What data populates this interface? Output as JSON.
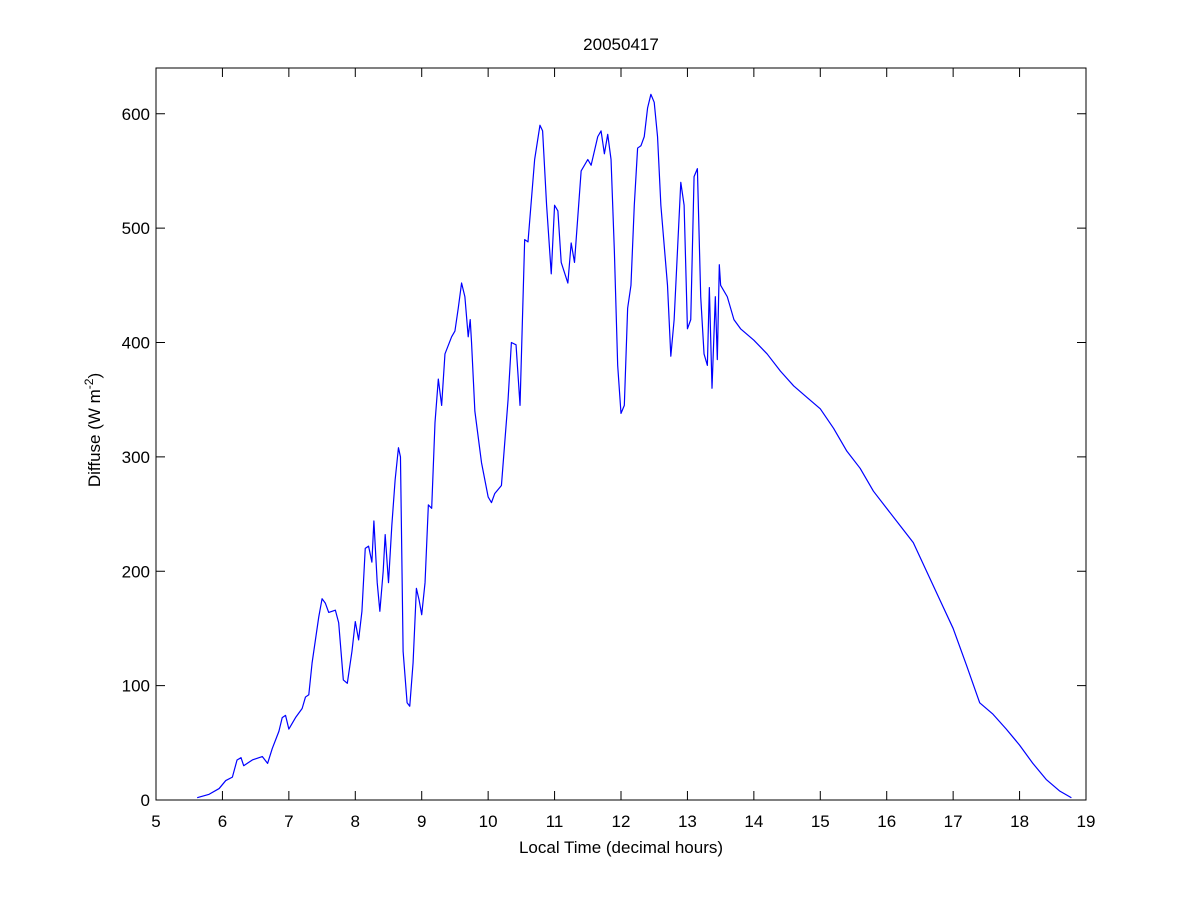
{
  "chart_data": {
    "type": "line",
    "title": "20050417",
    "xlabel": "Local Time (decimal hours)",
    "ylabel": {
      "text": "Diffuse (W m",
      "superscript": "-2",
      "suffix": ")"
    },
    "color": "#0000ff",
    "xlim": [
      5,
      19
    ],
    "xticks": [
      5,
      6,
      7,
      8,
      9,
      10,
      11,
      12,
      13,
      14,
      15,
      16,
      17,
      18,
      19
    ],
    "ylim": [
      0,
      640
    ],
    "yticks": [
      0,
      100,
      200,
      300,
      400,
      500,
      600
    ],
    "x": [
      5.62,
      5.8,
      5.95,
      6.05,
      6.15,
      6.22,
      6.28,
      6.32,
      6.45,
      6.6,
      6.68,
      6.75,
      6.85,
      6.9,
      6.95,
      7.0,
      7.1,
      7.2,
      7.25,
      7.3,
      7.35,
      7.45,
      7.5,
      7.55,
      7.6,
      7.7,
      7.75,
      7.82,
      7.88,
      7.95,
      8.0,
      8.05,
      8.1,
      8.15,
      8.2,
      8.25,
      8.28,
      8.33,
      8.37,
      8.42,
      8.45,
      8.5,
      8.55,
      8.6,
      8.65,
      8.68,
      8.72,
      8.78,
      8.82,
      8.87,
      8.92,
      8.96,
      9.0,
      9.05,
      9.1,
      9.15,
      9.2,
      9.25,
      9.3,
      9.35,
      9.45,
      9.5,
      9.55,
      9.6,
      9.65,
      9.7,
      9.73,
      9.75,
      9.8,
      9.9,
      10.0,
      10.05,
      10.1,
      10.2,
      10.3,
      10.35,
      10.42,
      10.48,
      10.55,
      10.6,
      10.7,
      10.78,
      10.82,
      10.88,
      10.95,
      11.0,
      11.05,
      11.1,
      11.2,
      11.25,
      11.3,
      11.4,
      11.5,
      11.55,
      11.65,
      11.7,
      11.75,
      11.8,
      11.85,
      11.9,
      11.95,
      12.0,
      12.05,
      12.1,
      12.15,
      12.2,
      12.25,
      12.3,
      12.35,
      12.4,
      12.45,
      12.5,
      12.55,
      12.6,
      12.7,
      12.75,
      12.8,
      12.85,
      12.9,
      12.95,
      13.0,
      13.05,
      13.1,
      13.15,
      13.2,
      13.25,
      13.3,
      13.33,
      13.37,
      13.42,
      13.45,
      13.48,
      13.5,
      13.6,
      13.7,
      13.8,
      14.0,
      14.2,
      14.4,
      14.6,
      14.8,
      15.0,
      15.2,
      15.4,
      15.6,
      15.8,
      16.0,
      16.2,
      16.4,
      16.6,
      16.8,
      17.0,
      17.2,
      17.4,
      17.6,
      17.8,
      18.0,
      18.2,
      18.4,
      18.6,
      18.78
    ],
    "values": [
      2,
      5,
      10,
      17,
      20,
      35,
      37,
      30,
      35,
      38,
      32,
      45,
      60,
      72,
      74,
      62,
      72,
      80,
      90,
      92,
      120,
      160,
      176,
      172,
      164,
      166,
      155,
      105,
      102,
      130,
      156,
      140,
      165,
      220,
      222,
      208,
      244,
      190,
      165,
      200,
      232,
      190,
      240,
      280,
      308,
      300,
      130,
      85,
      82,
      120,
      185,
      175,
      162,
      190,
      258,
      255,
      330,
      368,
      345,
      390,
      405,
      410,
      430,
      452,
      440,
      405,
      420,
      400,
      340,
      295,
      265,
      260,
      268,
      275,
      350,
      400,
      398,
      345,
      490,
      488,
      560,
      590,
      585,
      520,
      460,
      520,
      515,
      470,
      452,
      487,
      470,
      550,
      560,
      555,
      580,
      585,
      565,
      582,
      560,
      480,
      380,
      338,
      345,
      430,
      450,
      520,
      570,
      572,
      580,
      605,
      617,
      610,
      580,
      520,
      450,
      388,
      420,
      480,
      540,
      520,
      412,
      420,
      545,
      552,
      440,
      390,
      380,
      448,
      360,
      440,
      385,
      468,
      450,
      440,
      420,
      412,
      402,
      390,
      375,
      362,
      352,
      342,
      325,
      305,
      290,
      270,
      255,
      240,
      225,
      200,
      175,
      150,
      118,
      85,
      75,
      62,
      48,
      32,
      18,
      8,
      2
    ]
  }
}
